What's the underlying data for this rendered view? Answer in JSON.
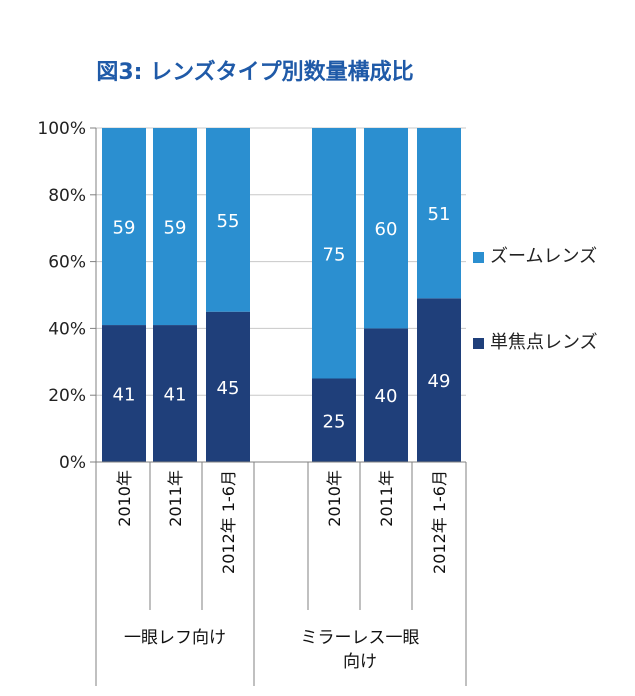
{
  "chart_data": {
    "type": "bar",
    "stacked": true,
    "title": "図3: レンズタイプ別数量構成比",
    "yticks": [
      "0%",
      "20%",
      "40%",
      "60%",
      "80%",
      "100%"
    ],
    "ylim": [
      0,
      100
    ],
    "grid": true,
    "legend_position": "right",
    "groups": [
      {
        "label": "一眼レフ向け",
        "categories": [
          "2010年",
          "2011年",
          "2012年 1-6月"
        ]
      },
      {
        "label": "ミラーレス一眼 向け",
        "categories": [
          "2010年",
          "2011年",
          "2012年 1-6月"
        ]
      }
    ],
    "categories": [
      "2010年",
      "2011年",
      "2012年 1-6月",
      "2010年",
      "2011年",
      "2012年 1-6月"
    ],
    "series": [
      {
        "name": "単焦点レンズ",
        "color": "#1f3f7a",
        "values": [
          41,
          41,
          45,
          25,
          40,
          49
        ]
      },
      {
        "name": "ズームレンズ",
        "color": "#2b8fd0",
        "values": [
          59,
          59,
          55,
          75,
          60,
          51
        ]
      }
    ]
  }
}
